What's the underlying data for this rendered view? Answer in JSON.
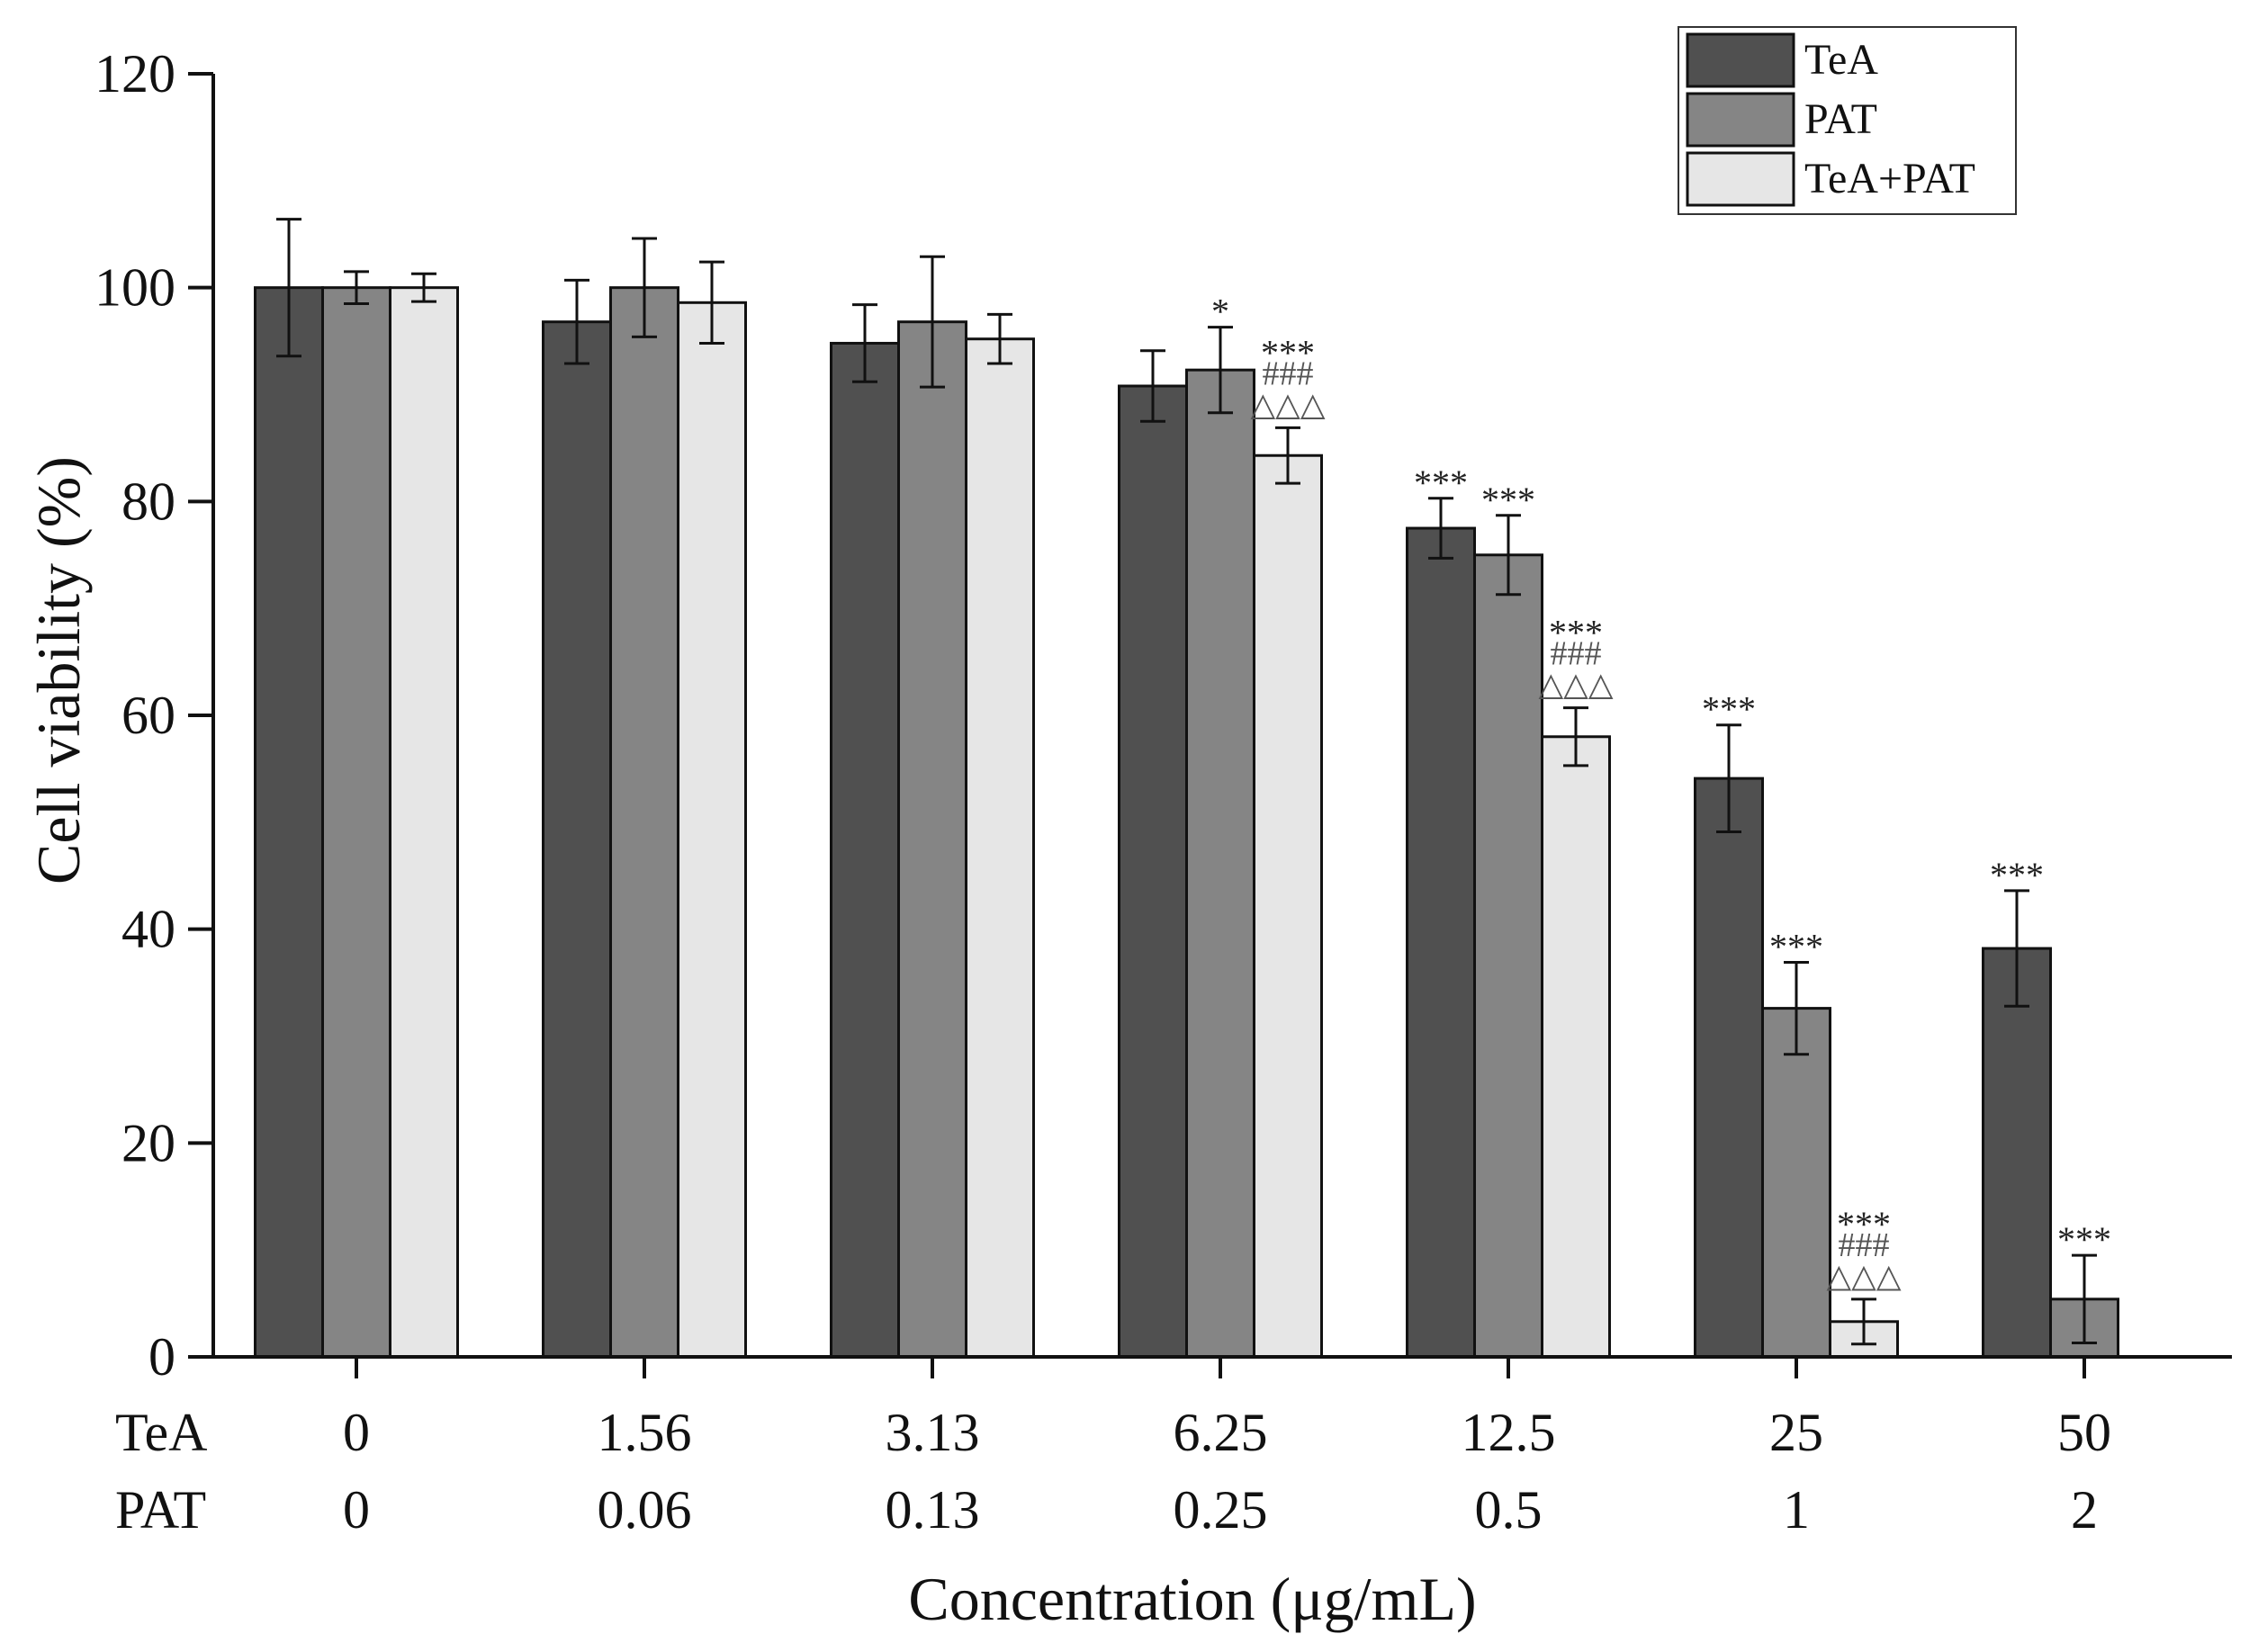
{
  "chart_data": {
    "type": "bar",
    "title": "",
    "ylabel": "Cell viability (%)",
    "xlabel": "Concentration (μg/mL)",
    "ylim": [
      0,
      120
    ],
    "yticks": [
      0,
      20,
      40,
      60,
      80,
      100,
      120
    ],
    "row_labels": [
      "TeA",
      "PAT"
    ],
    "categories_tea": [
      "0",
      "1.56",
      "3.13",
      "6.25",
      "12.5",
      "25",
      "50"
    ],
    "categories_pat": [
      "0",
      "0.06",
      "0.13",
      "0.25",
      "0.5",
      "1",
      "2"
    ],
    "series": [
      {
        "name": "TeA",
        "color": "#505050",
        "values": [
          100,
          96.8,
          94.8,
          90.8,
          77.5,
          54.1,
          38.2
        ],
        "errors": [
          6.4,
          3.9,
          3.6,
          3.3,
          2.8,
          5.0,
          5.4
        ],
        "sig": [
          null,
          null,
          null,
          null,
          "***",
          "***",
          "***"
        ],
        "sig_hash": [
          null,
          null,
          null,
          null,
          null,
          null,
          null
        ],
        "sig_tri": [
          null,
          null,
          null,
          null,
          null,
          null,
          null
        ]
      },
      {
        "name": "PAT",
        "color": "#858585",
        "values": [
          100,
          100,
          96.8,
          92.3,
          75.0,
          32.6,
          5.4
        ],
        "errors": [
          1.5,
          4.6,
          6.1,
          4.0,
          3.7,
          4.3,
          4.1
        ],
        "sig": [
          null,
          null,
          null,
          "*",
          "***",
          "***",
          "***"
        ],
        "sig_hash": [
          null,
          null,
          null,
          null,
          null,
          null,
          null
        ],
        "sig_tri": [
          null,
          null,
          null,
          null,
          null,
          null,
          null
        ]
      },
      {
        "name": "TeA+PAT",
        "color": "#e6e6e6",
        "values": [
          100,
          98.6,
          95.2,
          84.3,
          58.0,
          3.3,
          null
        ],
        "errors": [
          1.3,
          3.8,
          2.3,
          2.6,
          2.7,
          2.1,
          null
        ],
        "sig": [
          null,
          null,
          null,
          "***",
          "***",
          "***",
          null
        ],
        "sig_hash": [
          null,
          null,
          null,
          "###",
          "###",
          "###",
          null
        ],
        "sig_tri": [
          null,
          null,
          null,
          "△△△",
          "△△△",
          "△△△",
          null
        ]
      }
    ],
    "legend": {
      "position": "top-right",
      "entries": [
        "TeA",
        "PAT",
        "TeA+PAT"
      ]
    }
  }
}
